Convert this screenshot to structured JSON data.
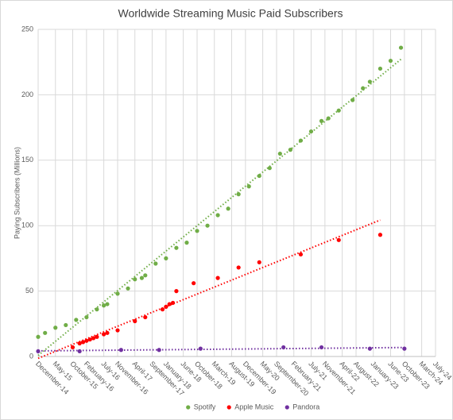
{
  "chart_data": {
    "type": "scatter",
    "title": "Worldwide Streaming Music Paid Subscribers",
    "y_label": "Paying Subscribers (Millions)",
    "xlim": [
      "2014-12",
      "2024-07"
    ],
    "ylim": [
      0,
      250
    ],
    "yticks": [
      0,
      50,
      100,
      150,
      200,
      250
    ],
    "xticks": [
      {
        "value": "2014-12",
        "label": "December-14"
      },
      {
        "value": "2015-05",
        "label": "May-15"
      },
      {
        "value": "2015-10",
        "label": "October-15"
      },
      {
        "value": "2016-02",
        "label": "February-16"
      },
      {
        "value": "2016-07",
        "label": "July-16"
      },
      {
        "value": "2016-11",
        "label": "November-16"
      },
      {
        "value": "2017-04",
        "label": "April-17"
      },
      {
        "value": "2017-09",
        "label": "September-17"
      },
      {
        "value": "2018-01",
        "label": "January-18"
      },
      {
        "value": "2018-06",
        "label": "June-18"
      },
      {
        "value": "2018-10",
        "label": "October-18"
      },
      {
        "value": "2019-03",
        "label": "March-19"
      },
      {
        "value": "2019-08",
        "label": "August-19"
      },
      {
        "value": "2019-12",
        "label": "December-19"
      },
      {
        "value": "2020-05",
        "label": "May-20"
      },
      {
        "value": "2020-09",
        "label": "September-20"
      },
      {
        "value": "2021-02",
        "label": "February-21"
      },
      {
        "value": "2021-07",
        "label": "July-21"
      },
      {
        "value": "2021-11",
        "label": "November-21"
      },
      {
        "value": "2022-04",
        "label": "April-22"
      },
      {
        "value": "2022-08",
        "label": "August-22"
      },
      {
        "value": "2023-01",
        "label": "January-23"
      },
      {
        "value": "2023-06",
        "label": "June-23"
      },
      {
        "value": "2023-10",
        "label": "October-23"
      },
      {
        "value": "2024-03",
        "label": "March-24"
      },
      {
        "value": "2024-07",
        "label": "July-24"
      }
    ],
    "grid": true,
    "trendline": true,
    "legend": "bottom",
    "series": [
      {
        "name": "Spotify",
        "color": "#70ad47",
        "x": [
          "2014-12",
          "2015-02",
          "2015-05",
          "2015-08",
          "2015-11",
          "2016-02",
          "2016-05",
          "2016-07",
          "2016-08",
          "2016-11",
          "2017-02",
          "2017-04",
          "2017-06",
          "2017-07",
          "2017-10",
          "2018-01",
          "2018-04",
          "2018-07",
          "2018-10",
          "2019-01",
          "2019-04",
          "2019-07",
          "2019-10",
          "2020-01",
          "2020-04",
          "2020-07",
          "2020-10",
          "2021-01",
          "2021-04",
          "2021-07",
          "2021-10",
          "2021-12",
          "2022-03",
          "2022-07",
          "2022-10",
          "2022-12",
          "2023-03",
          "2023-06",
          "2023-09"
        ],
        "values": [
          15,
          18,
          22,
          24,
          28,
          30,
          36,
          39,
          40,
          48,
          52,
          59,
          60,
          62,
          71,
          75,
          83,
          87,
          96,
          100,
          108,
          113,
          124,
          130,
          138,
          144,
          155,
          158,
          165,
          172,
          180,
          182,
          188,
          196,
          205,
          210,
          220,
          226,
          236
        ]
      },
      {
        "name": "Apple Music",
        "color": "#ff0000",
        "x": [
          "2015-10",
          "2015-12",
          "2016-01",
          "2016-02",
          "2016-03",
          "2016-04",
          "2016-05",
          "2016-07",
          "2016-08",
          "2016-11",
          "2017-04",
          "2017-07",
          "2017-12",
          "2018-01",
          "2018-02",
          "2018-03",
          "2018-04",
          "2018-09",
          "2019-04",
          "2019-10",
          "2020-04",
          "2021-04",
          "2022-03",
          "2023-03"
        ],
        "values": [
          7,
          10,
          11,
          12,
          13,
          14,
          15,
          17,
          18,
          20,
          27,
          30,
          36,
          38,
          40,
          41,
          50,
          56,
          60,
          68,
          72,
          78,
          89,
          93
        ]
      },
      {
        "name": "Pandora",
        "color": "#7030a0",
        "x": [
          "2014-12",
          "2015-12",
          "2016-12",
          "2017-11",
          "2018-11",
          "2020-11",
          "2021-10",
          "2022-12",
          "2023-10"
        ],
        "values": [
          4,
          4,
          5,
          5,
          6,
          7,
          7,
          6,
          6
        ]
      }
    ]
  }
}
